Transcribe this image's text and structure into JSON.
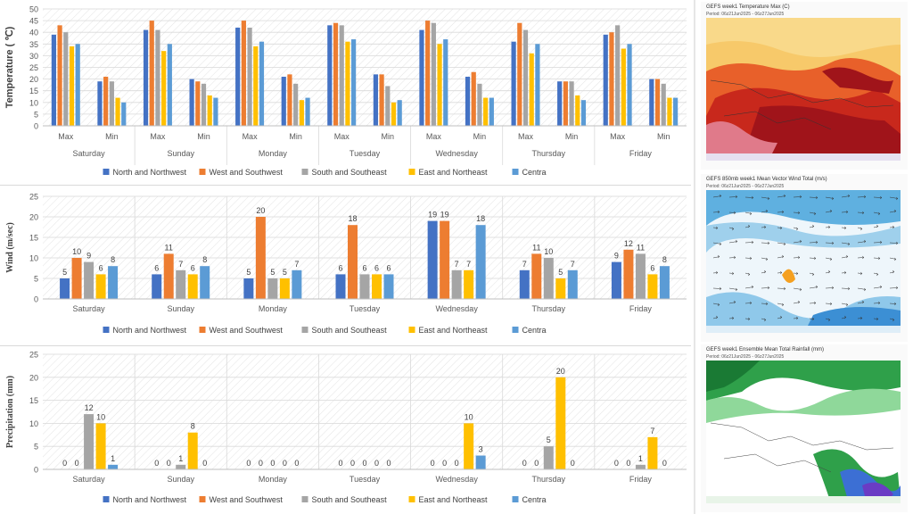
{
  "colors": {
    "north_northwest": "#4472C4",
    "west_southwest": "#ED7D31",
    "south_southeast": "#A5A5A5",
    "east_northeast": "#FFC000",
    "centra": "#5B9BD5"
  },
  "chart_data": [
    {
      "type": "bar",
      "ylabel": "Temperature ( ℃)",
      "ylim": [
        0,
        50
      ],
      "yticks": [
        0,
        5,
        10,
        15,
        20,
        25,
        30,
        35,
        40,
        45,
        50
      ],
      "days": [
        "Saturday",
        "Sunday",
        "Monday",
        "Tuesday",
        "Wednesday",
        "Thursday",
        "Friday"
      ],
      "subcategories": [
        "Max",
        "Min"
      ],
      "legend": [
        "North and Northwest",
        "West and Southwest",
        "South and Southeast",
        "East and Northeast",
        "Centra"
      ],
      "series": [
        {
          "name": "North and Northwest",
          "values": [
            [
              39,
              19
            ],
            [
              41,
              20
            ],
            [
              42,
              21
            ],
            [
              43,
              22
            ],
            [
              41,
              21
            ],
            [
              36,
              19
            ],
            [
              39,
              20
            ]
          ]
        },
        {
          "name": "West and Southwest",
          "values": [
            [
              43,
              21
            ],
            [
              45,
              19
            ],
            [
              45,
              22
            ],
            [
              44,
              22
            ],
            [
              45,
              23
            ],
            [
              44,
              19
            ],
            [
              40,
              20
            ]
          ]
        },
        {
          "name": "South and Southeast",
          "values": [
            [
              40,
              19
            ],
            [
              41,
              18
            ],
            [
              42,
              18
            ],
            [
              43,
              17
            ],
            [
              44,
              18
            ],
            [
              41,
              19
            ],
            [
              43,
              18
            ]
          ]
        },
        {
          "name": "East and Northeast",
          "values": [
            [
              34,
              12
            ],
            [
              32,
              13
            ],
            [
              34,
              11
            ],
            [
              36,
              10
            ],
            [
              35,
              12
            ],
            [
              31,
              13
            ],
            [
              33,
              12
            ]
          ]
        },
        {
          "name": "Centra",
          "values": [
            [
              35,
              10
            ],
            [
              35,
              12
            ],
            [
              36,
              12
            ],
            [
              37,
              11
            ],
            [
              37,
              12
            ],
            [
              35,
              11
            ],
            [
              35,
              12
            ]
          ]
        }
      ]
    },
    {
      "type": "bar",
      "ylabel": "Wind (m/sec)",
      "ylim": [
        0,
        25
      ],
      "yticks": [
        0,
        5,
        10,
        15,
        20,
        25
      ],
      "categories": [
        "Saturday",
        "Sunday",
        "Monday",
        "Tuesday",
        "Wednesday",
        "Thursday",
        "Friday"
      ],
      "legend": [
        "North and Northwest",
        "West and Southwest",
        "South and Southeast",
        "East and Northeast",
        "Centra"
      ],
      "series": [
        {
          "name": "North and Northwest",
          "values": [
            5,
            6,
            5,
            6,
            19,
            7,
            9
          ]
        },
        {
          "name": "West and Southwest",
          "values": [
            10,
            11,
            20,
            18,
            19,
            11,
            12
          ]
        },
        {
          "name": "South and Southeast",
          "values": [
            9,
            7,
            5,
            6,
            7,
            10,
            11
          ]
        },
        {
          "name": "East and Northeast",
          "values": [
            6,
            6,
            5,
            6,
            7,
            5,
            6
          ]
        },
        {
          "name": "Centra",
          "values": [
            8,
            8,
            7,
            6,
            18,
            7,
            8
          ]
        }
      ]
    },
    {
      "type": "bar",
      "ylabel": "Precipitation (mm)",
      "ylim": [
        0,
        25
      ],
      "yticks": [
        0,
        5,
        10,
        15,
        20,
        25
      ],
      "categories": [
        "Saturday",
        "Sunday",
        "Monday",
        "Tuesday",
        "Wednesday",
        "Thursday",
        "Friday"
      ],
      "legend": [
        "North and Northwest",
        "West and Southwest",
        "South and Southeast",
        "East and Northeast",
        "Centra"
      ],
      "series": [
        {
          "name": "North and Northwest",
          "values": [
            0,
            0,
            0,
            0,
            0,
            0,
            0
          ]
        },
        {
          "name": "West and Southwest",
          "values": [
            0,
            0,
            0,
            0,
            0,
            0,
            0
          ]
        },
        {
          "name": "South and Southeast",
          "values": [
            12,
            1,
            0,
            0,
            0,
            5,
            1
          ]
        },
        {
          "name": "East and Northeast",
          "values": [
            10,
            8,
            0,
            0,
            10,
            20,
            7
          ]
        },
        {
          "name": "Centra",
          "values": [
            1,
            0,
            0,
            0,
            3,
            0,
            0
          ]
        }
      ]
    }
  ],
  "maps": [
    {
      "title": "GEFS week1 Temperature Max (C)",
      "period": "Period: 06z21Jun2025 - 06z27Jun2025"
    },
    {
      "title": "GEFS 850mb week1 Mean Vector Wind Total (m/s)",
      "period": "Period: 06z21Jun2025 - 06z27Jun2025"
    },
    {
      "title": "GEFS week1 Ensemble Mean Total Rainfall (mm)",
      "period": "Period: 06z21Jun2025 - 06z27Jun2025"
    }
  ]
}
